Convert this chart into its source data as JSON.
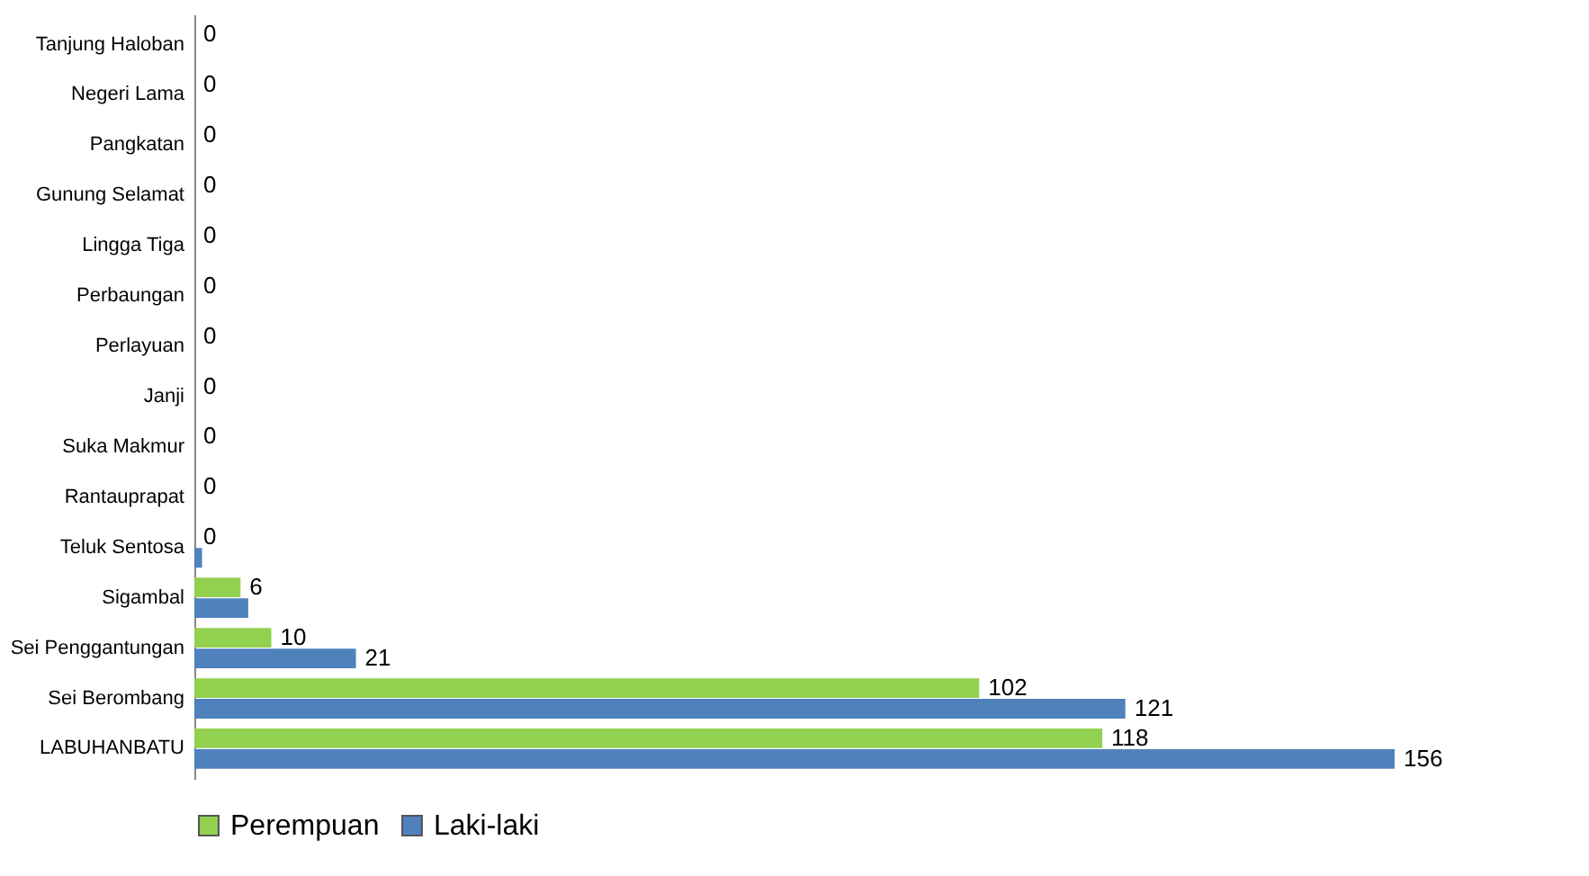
{
  "chart_data": {
    "type": "bar",
    "orientation": "horizontal",
    "categories": [
      "Tanjung Haloban",
      "Negeri Lama",
      "Pangkatan",
      "Gunung Selamat",
      "Lingga Tiga",
      "Perbaungan",
      "Perlayuan",
      "Janji",
      "Suka Makmur",
      "Rantauprapat",
      "Teluk Sentosa",
      "Sigambal",
      "Sei Penggantungan",
      "Sei Berombang",
      "LABUHANBATU"
    ],
    "series": [
      {
        "name": "Perempuan",
        "color": "#92d050",
        "values": [
          0,
          0,
          0,
          0,
          0,
          0,
          0,
          0,
          0,
          0,
          0,
          6,
          10,
          102,
          118
        ],
        "value_labels": [
          "0",
          "0",
          "0",
          "0",
          "0",
          "0",
          "0",
          "0",
          "0",
          "0",
          "0",
          "6",
          "10",
          "102",
          "118"
        ]
      },
      {
        "name": "Laki-laki",
        "color": "#4f81bd",
        "values": [
          0,
          0,
          0,
          0,
          0,
          0,
          0,
          0,
          0,
          0,
          1,
          7,
          21,
          121,
          156
        ],
        "value_labels": [
          null,
          null,
          null,
          null,
          null,
          null,
          null,
          null,
          null,
          null,
          null,
          null,
          "21",
          "121",
          "156"
        ]
      }
    ],
    "legend": "bottom"
  }
}
